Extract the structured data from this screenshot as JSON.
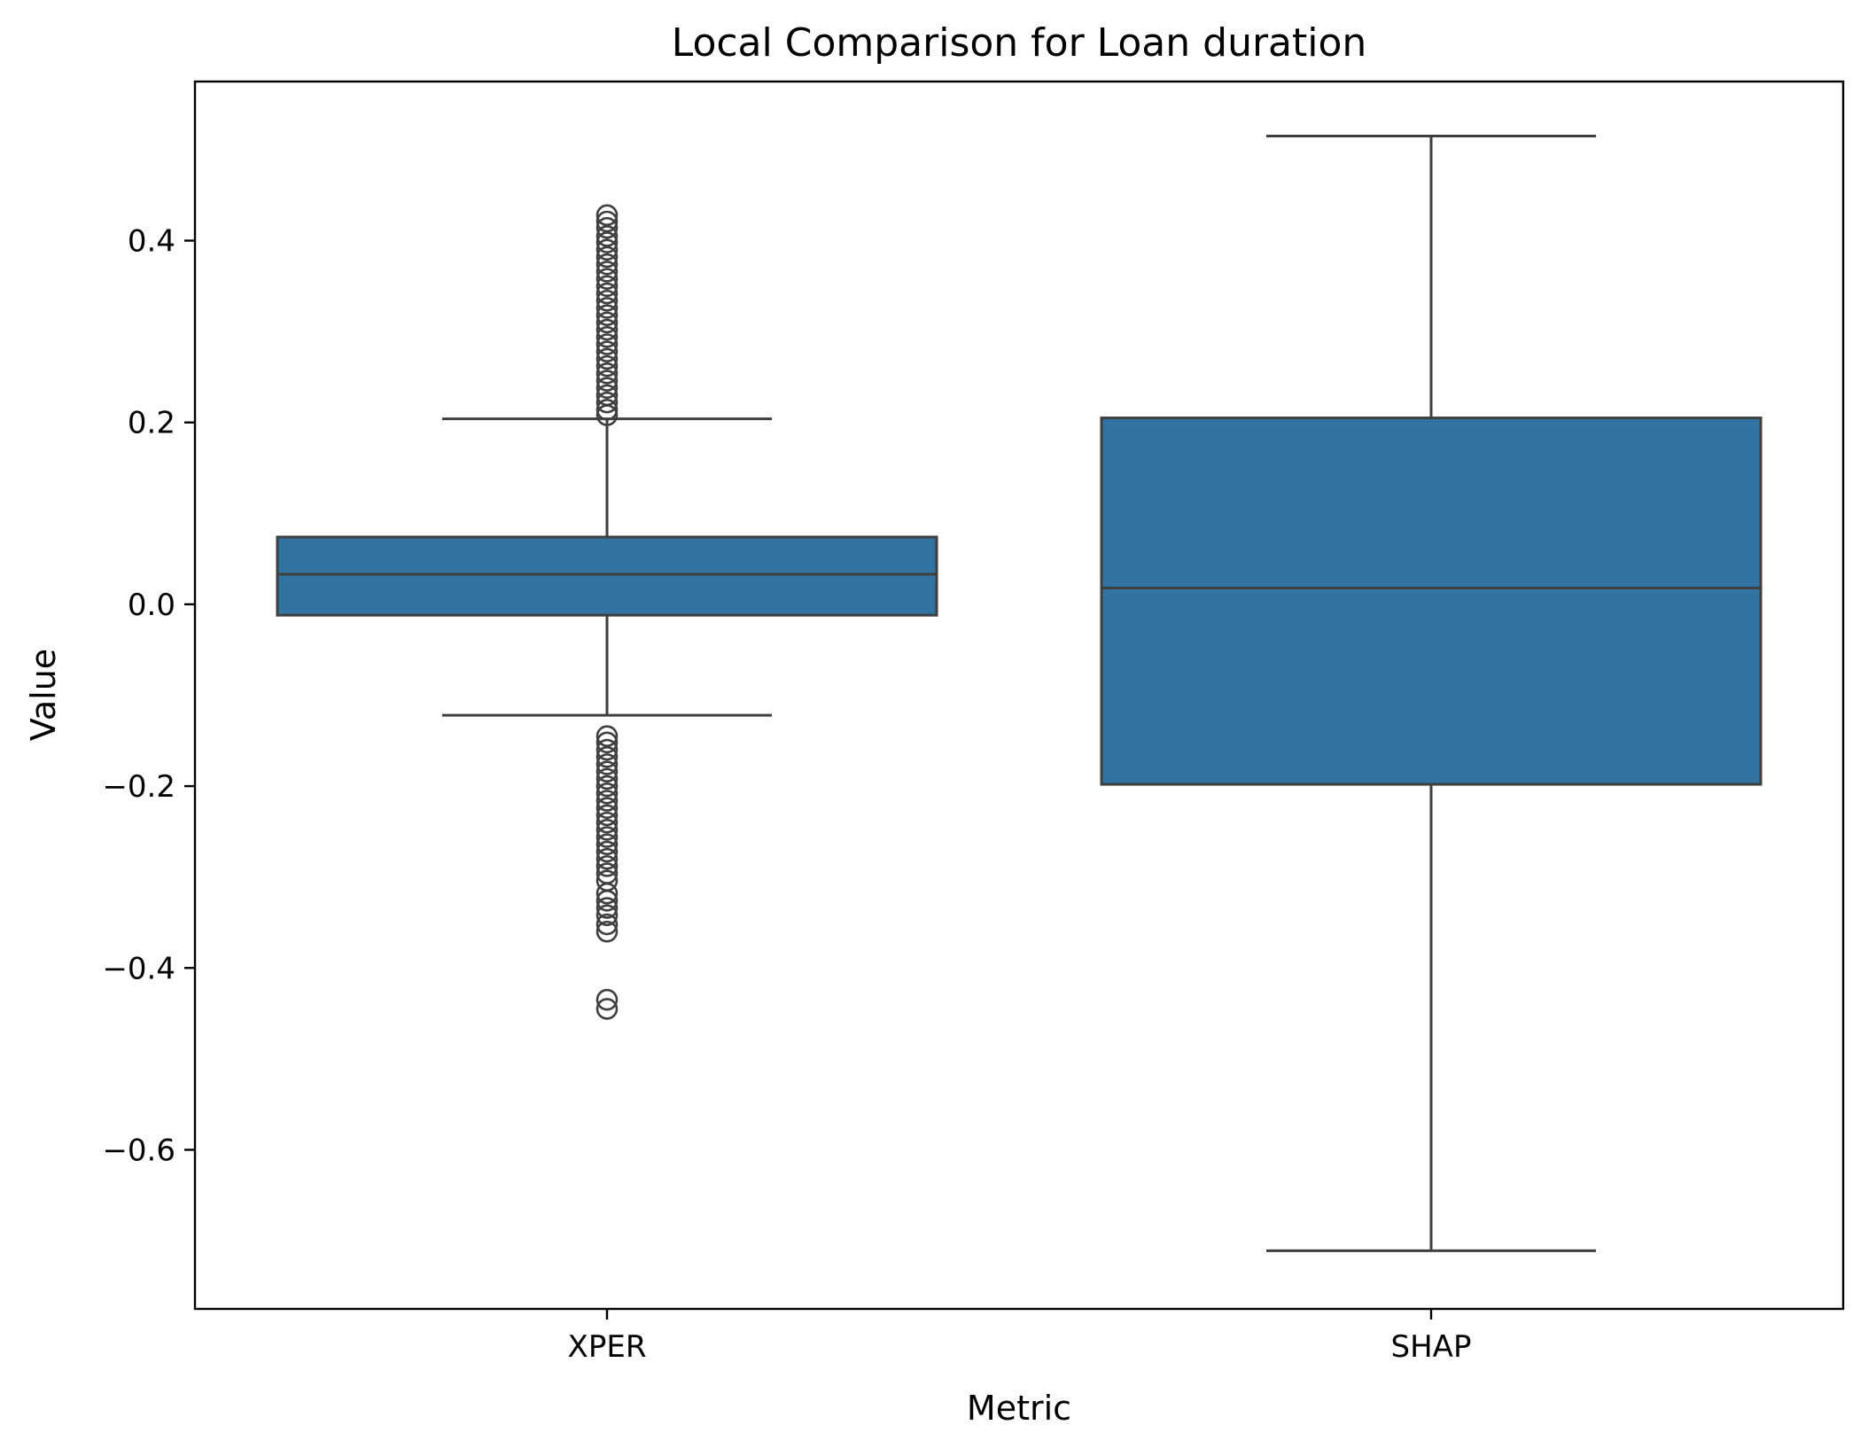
{
  "chart_data": {
    "type": "box",
    "title": "Local Comparison for Loan duration",
    "xlabel": "Metric",
    "ylabel": "Value",
    "categories": [
      "XPER",
      "SHAP"
    ],
    "ylim": [
      -0.775,
      0.575
    ],
    "yticks": [
      -0.6,
      -0.4,
      -0.2,
      0.0,
      0.2,
      0.4
    ],
    "ytick_labels": [
      "−0.6",
      "−0.4",
      "−0.2",
      "0.0",
      "0.2",
      "0.4"
    ],
    "grid": false,
    "colors": {
      "box_fill": "#3274a1",
      "line": "#3f3f3f",
      "axes": "#000000"
    },
    "boxes": [
      {
        "category": "XPER",
        "q1": -0.012,
        "median": 0.033,
        "q3": 0.074,
        "whisker_low": -0.122,
        "whisker_high": 0.204,
        "outliers": [
          0.428,
          0.421,
          0.414,
          0.405,
          0.398,
          0.39,
          0.382,
          0.374,
          0.366,
          0.358,
          0.35,
          0.342,
          0.334,
          0.326,
          0.318,
          0.31,
          0.302,
          0.294,
          0.286,
          0.278,
          0.27,
          0.262,
          0.254,
          0.246,
          0.238,
          0.23,
          0.222,
          0.214,
          0.208,
          -0.145,
          -0.152,
          -0.16,
          -0.168,
          -0.176,
          -0.184,
          -0.192,
          -0.2,
          -0.208,
          -0.216,
          -0.224,
          -0.232,
          -0.24,
          -0.248,
          -0.256,
          -0.264,
          -0.272,
          -0.28,
          -0.288,
          -0.296,
          -0.304,
          -0.318,
          -0.326,
          -0.334,
          -0.342,
          -0.352,
          -0.36,
          -0.435,
          -0.445
        ]
      },
      {
        "category": "SHAP",
        "q1": -0.198,
        "median": 0.018,
        "q3": 0.205,
        "whisker_low": -0.711,
        "whisker_high": 0.515,
        "outliers": []
      }
    ]
  }
}
